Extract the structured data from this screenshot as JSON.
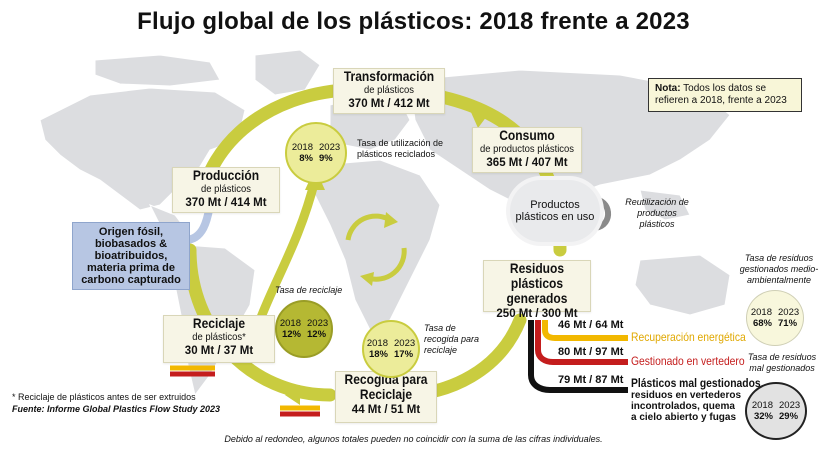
{
  "title": "Flujo global de los plásticos: 2018 frente a 2023",
  "note": {
    "label": "Nota:",
    "text": "Todos los datos se refieren a 2018, frente a 2023"
  },
  "transformation": {
    "title": "Transformación",
    "sub": "de plásticos",
    "value": "370 Mt / 412 Mt"
  },
  "consumption": {
    "title": "Consumo",
    "sub": "de productos plásticos",
    "value": "365 Mt / 407 Mt"
  },
  "production": {
    "title": "Producción",
    "sub": "de plásticos",
    "value": "370 Mt / 414 Mt"
  },
  "origin": {
    "text": "Origen fósil, biobasados & bioatribuidos, materia prima de carbono capturado"
  },
  "products_in_use": {
    "text": "Productos plásticos en uso"
  },
  "reuse": {
    "text": "Reutilización de productos plásticos"
  },
  "waste_generated": {
    "title": "Residuos plásticos generados",
    "value": "250 Mt / 300 Mt"
  },
  "recycling": {
    "title": "Reciclaje",
    "sub": "de plásticos*",
    "value": "30 Mt / 37 Mt"
  },
  "collection": {
    "title": "Recogida para Reciclaje",
    "value": "44 Mt / 51 Mt"
  },
  "recycled_use_rate": {
    "caption": "Tasa de utilización de plásticos reciclados",
    "y1": "2018",
    "y2": "2023",
    "v1": "8%",
    "v2": "9%"
  },
  "recycling_rate": {
    "caption": "Tasa de reciclaje",
    "y1": "2018",
    "y2": "2023",
    "v1": "12%",
    "v2": "12%"
  },
  "collection_rate": {
    "caption": "Tasa de recogida para reciclaje",
    "y1": "2018",
    "y2": "2023",
    "v1": "18%",
    "v2": "17%"
  },
  "env_managed_rate": {
    "caption": "Tasa de residuos gestionados medio-ambientalmente",
    "y1": "2018",
    "y2": "2023",
    "v1": "68%",
    "v2": "71%"
  },
  "mismanaged_rate": {
    "caption": "Tasa de residuos mal gestionados",
    "y1": "2018",
    "y2": "2023",
    "v1": "32%",
    "v2": "29%"
  },
  "flows": {
    "energy": {
      "value": "46 Mt / 64 Mt",
      "label": "Recuperación energética"
    },
    "landfill": {
      "value": "80 Mt / 97 Mt",
      "label": "Gestionado en vertedero"
    },
    "mismanaged": {
      "value": "79 Mt / 87 Mt",
      "label": "Plásticos mal gestionados",
      "sub": "residuos en vertederos incontrolados, quema a cielo abierto y fugas"
    }
  },
  "footnote": "* Reciclaje de plásticos antes de ser extruidos",
  "source": "Fuente: Informe Global Plastics Flow Study 2023",
  "rounding": "Debido al redondeo, algunos totales pueden no coincidir con la suma de las cifras individuales.",
  "colors": {
    "cycle": "#c9cc3f",
    "energy": "#f2b800",
    "landfill": "#c41d1d",
    "mismanaged": "#111111",
    "origin": "#b7c6e3"
  }
}
